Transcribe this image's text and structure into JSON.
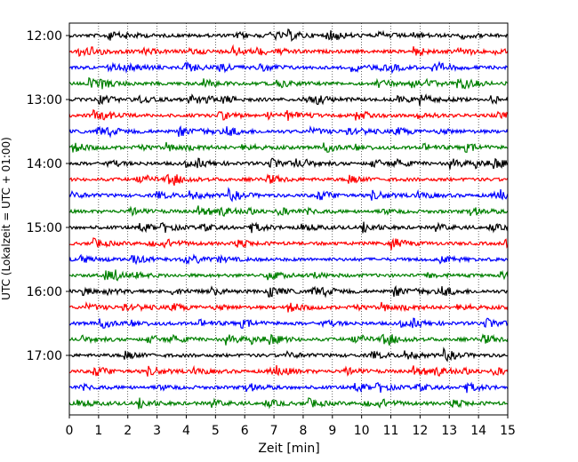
{
  "chart_data": {
    "type": "line",
    "title": "",
    "xlabel": "Zeit  [min]",
    "ylabel": "UTC (Lokalzeit = UTC + 01:00)",
    "xlim": [
      0,
      15
    ],
    "x_ticks": [
      "0",
      "1",
      "2",
      "3",
      "4",
      "5",
      "6",
      "7",
      "8",
      "9",
      "10",
      "11",
      "12",
      "13",
      "14",
      "15"
    ],
    "y_ticks": [
      "12:00",
      "13:00",
      "14:00",
      "15:00",
      "16:00",
      "17:00"
    ],
    "grid": "vertical dotted at each minute",
    "row_colors": [
      "#000000",
      "#ff0000",
      "#0000ff",
      "#008000"
    ],
    "rows": [
      {
        "start": "12:00"
      },
      {
        "start": "12:15"
      },
      {
        "start": "12:30"
      },
      {
        "start": "12:45"
      },
      {
        "start": "13:00"
      },
      {
        "start": "13:15"
      },
      {
        "start": "13:30"
      },
      {
        "start": "13:45"
      },
      {
        "start": "14:00"
      },
      {
        "start": "14:15"
      },
      {
        "start": "14:30"
      },
      {
        "start": "14:45"
      },
      {
        "start": "15:00"
      },
      {
        "start": "15:15"
      },
      {
        "start": "15:30"
      },
      {
        "start": "15:45"
      },
      {
        "start": "16:00"
      },
      {
        "start": "16:15"
      },
      {
        "start": "16:30"
      },
      {
        "start": "16:45"
      },
      {
        "start": "17:00"
      },
      {
        "start": "17:15"
      },
      {
        "start": "17:30"
      },
      {
        "start": "17:45"
      }
    ]
  }
}
